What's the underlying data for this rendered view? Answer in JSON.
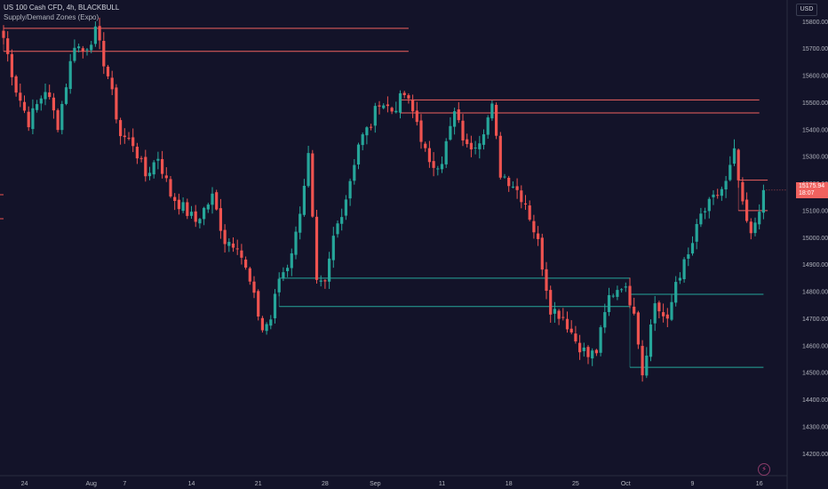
{
  "header": {
    "symbol_line": "US 100 Cash CFD, 4h, BLACKBULL",
    "indicator": "Supply/Demand Zones (Expo)"
  },
  "currency_button": "USD",
  "current_price": {
    "value": "15175.94",
    "countdown": "18:07",
    "color": "#f0625f"
  },
  "lightning_icon": "lightning-icon",
  "colors": {
    "background": "#131329",
    "bull": "#26a69a",
    "bear": "#ef5350",
    "supply": "#f0625f",
    "demand": "#26a69a",
    "axis_text": "#b2b5be"
  },
  "chart_data": {
    "type": "candlestick",
    "title": "US 100 Cash CFD, 4h, BLACKBULL",
    "ylim": [
      14135,
      15880
    ],
    "y_ticks": [
      "15800.00",
      "15700.00",
      "15600.00",
      "15500.00",
      "15400.00",
      "15300.00",
      "15200.00",
      "15100.00",
      "15000.00",
      "14900.00",
      "14800.00",
      "14700.00",
      "14600.00",
      "14500.00",
      "14400.00",
      "14300.00",
      "14200.00"
    ],
    "x_ticks": [
      {
        "label": "24",
        "bar": 5
      },
      {
        "label": "Aug",
        "bar": 21
      },
      {
        "label": "7",
        "bar": 29
      },
      {
        "label": "14",
        "bar": 45
      },
      {
        "label": "21",
        "bar": 61
      },
      {
        "label": "28",
        "bar": 77
      },
      {
        "label": "Sep",
        "bar": 89
      },
      {
        "label": "11",
        "bar": 105
      },
      {
        "label": "18",
        "bar": 121
      },
      {
        "label": "25",
        "bar": 137
      },
      {
        "label": "Oct",
        "bar": 149
      },
      {
        "label": "9",
        "bar": 165
      },
      {
        "label": "16",
        "bar": 181
      }
    ],
    "keypoints": [
      [
        0,
        15740
      ],
      [
        3,
        15550
      ],
      [
        6,
        15430
      ],
      [
        10,
        15550
      ],
      [
        13,
        15420
      ],
      [
        17,
        15720
      ],
      [
        19,
        15690
      ],
      [
        22,
        15760
      ],
      [
        25,
        15600
      ],
      [
        28,
        15380
      ],
      [
        31,
        15350
      ],
      [
        34,
        15230
      ],
      [
        37,
        15300
      ],
      [
        40,
        15160
      ],
      [
        43,
        15110
      ],
      [
        46,
        15060
      ],
      [
        50,
        15150
      ],
      [
        53,
        14990
      ],
      [
        56,
        14980
      ],
      [
        59,
        14830
      ],
      [
        62,
        14660
      ],
      [
        64,
        14700
      ],
      [
        66,
        14850
      ],
      [
        68,
        14900
      ],
      [
        70,
        15010
      ],
      [
        73,
        15300
      ],
      [
        75,
        14820
      ],
      [
        77,
        14820
      ],
      [
        79,
        15000
      ],
      [
        82,
        15150
      ],
      [
        85,
        15350
      ],
      [
        88,
        15420
      ],
      [
        90,
        15510
      ],
      [
        93,
        15470
      ],
      [
        96,
        15530
      ],
      [
        99,
        15430
      ],
      [
        102,
        15260
      ],
      [
        105,
        15290
      ],
      [
        108,
        15460
      ],
      [
        111,
        15330
      ],
      [
        114,
        15370
      ],
      [
        117,
        15480
      ],
      [
        119,
        15240
      ],
      [
        122,
        15200
      ],
      [
        125,
        15130
      ],
      [
        128,
        14980
      ],
      [
        131,
        14740
      ],
      [
        134,
        14710
      ],
      [
        137,
        14620
      ],
      [
        140,
        14560
      ],
      [
        142,
        14580
      ],
      [
        145,
        14780
      ],
      [
        148,
        14830
      ],
      [
        151,
        14740
      ],
      [
        153,
        14500
      ],
      [
        156,
        14760
      ],
      [
        159,
        14680
      ],
      [
        161,
        14840
      ],
      [
        164,
        14930
      ],
      [
        167,
        15080
      ],
      [
        170,
        15140
      ],
      [
        173,
        15200
      ],
      [
        175,
        15310
      ],
      [
        177,
        15110
      ],
      [
        179,
        15000
      ],
      [
        182,
        15176
      ]
    ],
    "zones": {
      "supply": [
        {
          "top": 15775,
          "bottom": 15690,
          "from_bar": 0,
          "to_bar": 97
        },
        {
          "top": 15510,
          "bottom": 15462,
          "from_bar": 95,
          "to_bar": 181
        },
        {
          "top": 15213,
          "bottom": 15100,
          "from_bar": 176,
          "to_bar": 183
        }
      ],
      "demand": [
        {
          "top": 14850,
          "bottom": 14745,
          "from_bar": 66,
          "to_bar": 150
        },
        {
          "top": 14790,
          "bottom": 14520,
          "from_bar": 150,
          "to_bar": 182
        }
      ]
    },
    "grid": false
  }
}
